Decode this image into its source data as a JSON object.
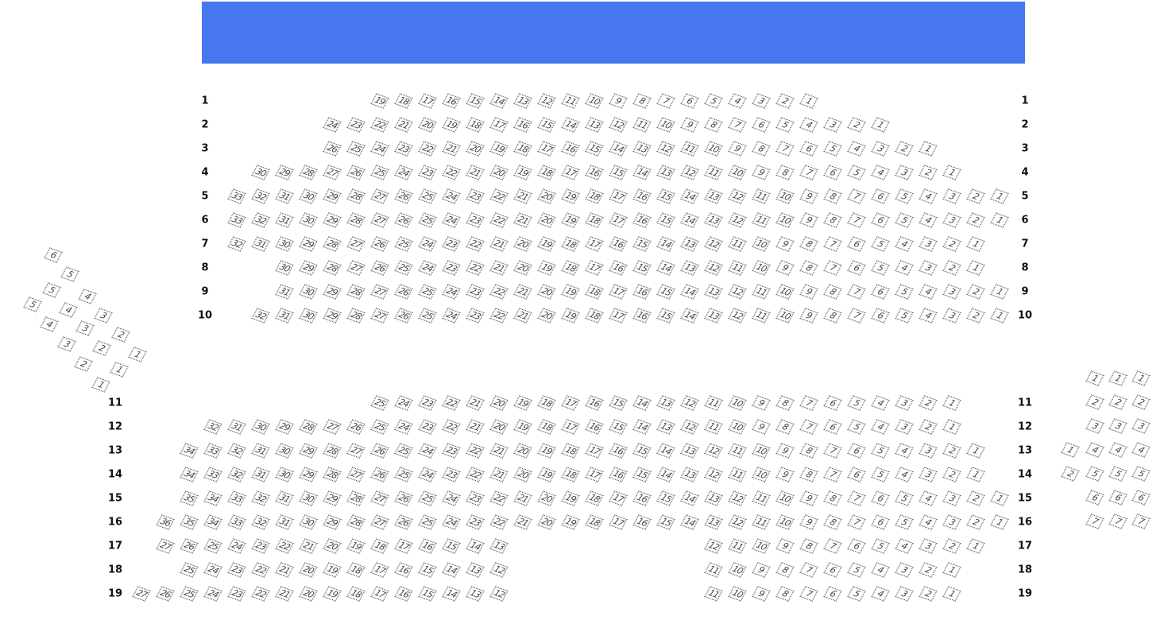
{
  "stage": {
    "color": "#4677EE"
  },
  "main_rows": [
    {
      "label": "1",
      "blocks": [
        {
          "from": 19,
          "to": 1
        }
      ]
    },
    {
      "label": "2",
      "blocks": [
        {
          "from": 24,
          "to": 1
        }
      ]
    },
    {
      "label": "3",
      "blocks": [
        {
          "from": 26,
          "to": 1
        }
      ]
    },
    {
      "label": "4",
      "blocks": [
        {
          "from": 30,
          "to": 1
        }
      ]
    },
    {
      "label": "5",
      "blocks": [
        {
          "from": 33,
          "to": 1
        }
      ]
    },
    {
      "label": "6",
      "blocks": [
        {
          "from": 33,
          "to": 1
        }
      ]
    },
    {
      "label": "7",
      "blocks": [
        {
          "from": 32,
          "to": 1
        }
      ]
    },
    {
      "label": "8",
      "blocks": [
        {
          "from": 30,
          "to": 1
        }
      ]
    },
    {
      "label": "9",
      "blocks": [
        {
          "from": 31,
          "to": 1
        }
      ]
    },
    {
      "label": "10",
      "blocks": [
        {
          "from": 32,
          "to": 1
        }
      ]
    },
    {
      "label": "11",
      "blocks": [
        {
          "from": 25,
          "to": 1
        }
      ]
    },
    {
      "label": "12",
      "blocks": [
        {
          "from": 32,
          "to": 1
        }
      ]
    },
    {
      "label": "13",
      "blocks": [
        {
          "from": 34,
          "to": 1
        }
      ]
    },
    {
      "label": "14",
      "blocks": [
        {
          "from": 34,
          "to": 1
        }
      ]
    },
    {
      "label": "15",
      "blocks": [
        {
          "from": 35,
          "to": 1
        }
      ]
    },
    {
      "label": "16",
      "blocks": [
        {
          "from": 36,
          "to": 1
        }
      ]
    },
    {
      "label": "17",
      "blocks": [
        {
          "from": 27,
          "to": 13
        },
        {
          "from": 12,
          "to": 1
        }
      ]
    },
    {
      "label": "18",
      "blocks": [
        {
          "from": 25,
          "to": 12
        },
        {
          "from": 11,
          "to": 1
        }
      ]
    },
    {
      "label": "19",
      "blocks": [
        {
          "from": 27,
          "to": 12
        },
        {
          "from": 11,
          "to": 1
        }
      ]
    }
  ],
  "left_box_seats": [
    "6",
    "5",
    "5",
    "4",
    "5",
    "4",
    "3",
    "4",
    "3",
    "2",
    "3",
    "2",
    "1",
    "2",
    "1",
    "1"
  ],
  "right_box_seats": {
    "columns": [
      [
        "1",
        "2"
      ],
      [
        "1",
        "2",
        "3",
        "4",
        "5",
        "6",
        "7"
      ],
      [
        "1",
        "2",
        "3",
        "4",
        "5",
        "6",
        "7"
      ],
      [
        "1",
        "2",
        "3",
        "4",
        "5",
        "6",
        "7"
      ]
    ]
  }
}
